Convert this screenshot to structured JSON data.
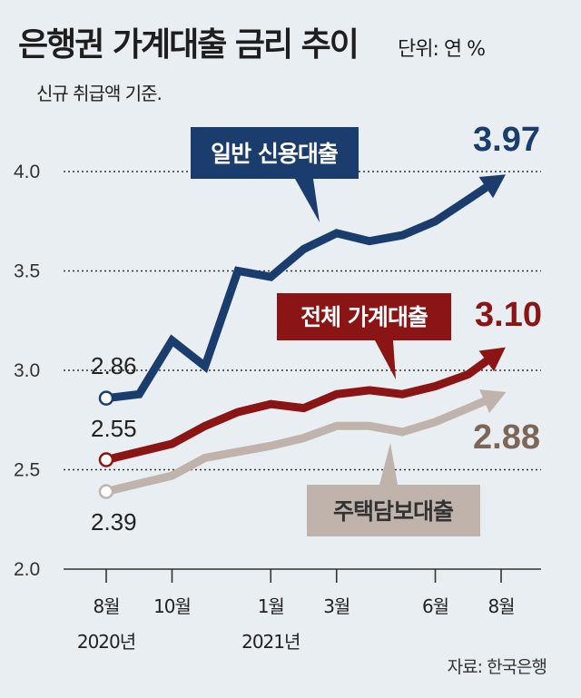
{
  "header": {
    "title": "은행권 가계대출 금리 추이",
    "unit": "단위: 연 %",
    "subtitle": "신규 취급액 기준.",
    "source": "자료: 한국은행"
  },
  "chart_data": {
    "type": "line",
    "ylim": [
      2.0,
      4.2
    ],
    "yticks": [
      "2.0",
      "2.5",
      "3.0",
      "3.5",
      "4.0"
    ],
    "x_labels": [
      {
        "idx": 0,
        "month": "8월",
        "year": "2020년"
      },
      {
        "idx": 2,
        "month": "10월",
        "year": ""
      },
      {
        "idx": 5,
        "month": "1월",
        "year": "2021년"
      },
      {
        "idx": 7,
        "month": "3월",
        "year": ""
      },
      {
        "idx": 10,
        "month": "6월",
        "year": ""
      },
      {
        "idx": 12,
        "month": "8월",
        "year": ""
      }
    ],
    "x": [
      "2020-08",
      "2020-09",
      "2020-10",
      "2020-11",
      "2020-12",
      "2021-01",
      "2021-02",
      "2021-03",
      "2021-04",
      "2021-05",
      "2021-06",
      "2021-07",
      "2021-08"
    ],
    "series": [
      {
        "name": "일반 신용대출",
        "color": "#1b3d6d",
        "values": [
          2.86,
          2.88,
          3.15,
          3.02,
          3.5,
          3.47,
          3.61,
          3.69,
          3.65,
          3.68,
          3.75,
          3.86,
          3.97
        ],
        "start_label": "2.86",
        "end_label": "3.97"
      },
      {
        "name": "전체 가계대출",
        "color": "#8b1414",
        "values": [
          2.55,
          2.59,
          2.63,
          2.72,
          2.79,
          2.83,
          2.81,
          2.88,
          2.9,
          2.88,
          2.92,
          2.98,
          3.1
        ],
        "start_label": "2.55",
        "end_label": "3.10"
      },
      {
        "name": "주택담보대출",
        "color": "#bfb3ab",
        "label_color": "#7d6658",
        "values": [
          2.39,
          2.43,
          2.47,
          2.56,
          2.59,
          2.62,
          2.66,
          2.72,
          2.72,
          2.69,
          2.74,
          2.81,
          2.88
        ],
        "start_label": "2.39",
        "end_label": "2.88"
      }
    ]
  }
}
